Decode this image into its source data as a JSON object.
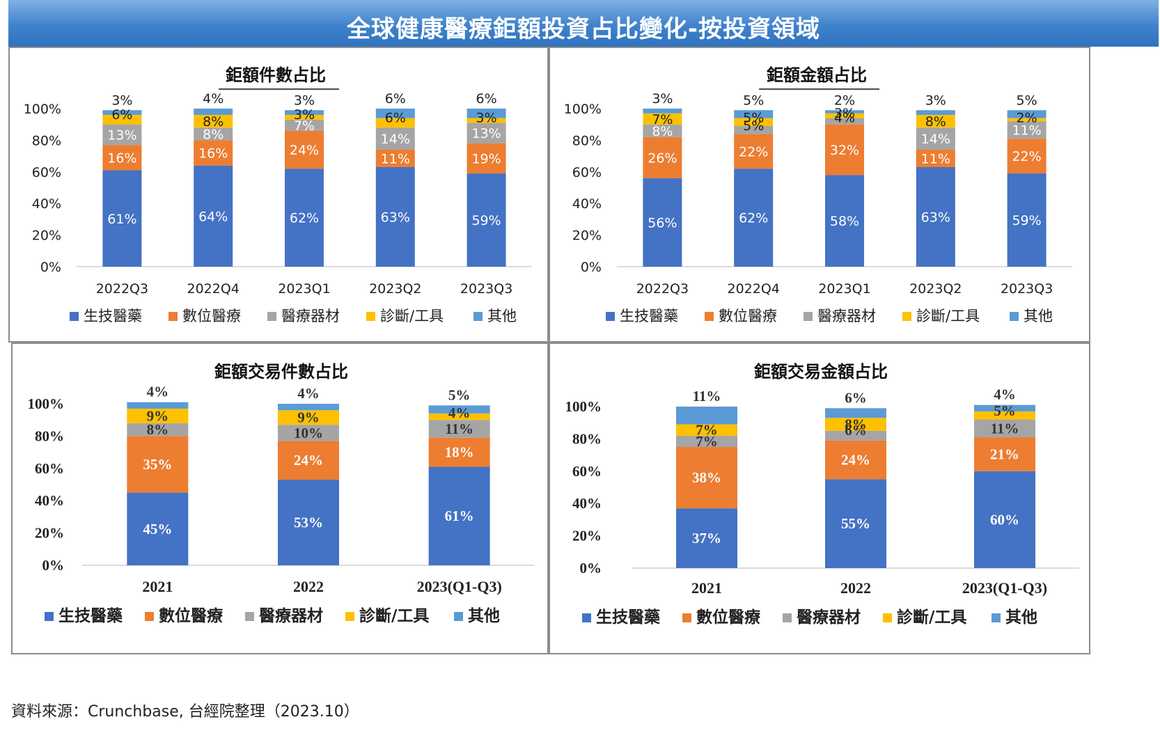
{
  "banner": {
    "title": "全球健康醫療鉅額投資占比變化-按投資領域"
  },
  "footer": {
    "source": "資料來源：Crunchbase, 台經院整理（2023.10）"
  },
  "colors": {
    "生技醫藥": "#4472c4",
    "數位醫療": "#ed7d31",
    "醫療器材": "#a5a5a5",
    "診斷/工具": "#ffc000",
    "其他": "#5b9bd5"
  },
  "chart_data": [
    {
      "type": "bar",
      "stacked": true,
      "title": "鉅額件數占比",
      "categories": [
        "2022Q3",
        "2022Q4",
        "2023Q1",
        "2023Q2",
        "2023Q3"
      ],
      "series": [
        {
          "name": "生技醫藥",
          "values": [
            61,
            64,
            62,
            63,
            59
          ]
        },
        {
          "name": "數位醫療",
          "values": [
            16,
            16,
            24,
            11,
            19
          ]
        },
        {
          "name": "醫療器材",
          "values": [
            13,
            8,
            7,
            14,
            13
          ]
        },
        {
          "name": "診斷/工具",
          "values": [
            6,
            8,
            3,
            6,
            3
          ]
        },
        {
          "name": "其他",
          "values": [
            3,
            4,
            3,
            6,
            6
          ]
        }
      ],
      "ylim": [
        0,
        100
      ],
      "yticks": [
        "0%",
        "20%",
        "40%",
        "60%",
        "80%",
        "100%"
      ],
      "legend": "bottom"
    },
    {
      "type": "bar",
      "stacked": true,
      "title": "鉅額金額占比",
      "categories": [
        "2022Q3",
        "2022Q4",
        "2023Q1",
        "2023Q2",
        "2023Q3"
      ],
      "series": [
        {
          "name": "生技醫藥",
          "values": [
            56,
            62,
            58,
            63,
            59
          ]
        },
        {
          "name": "數位醫療",
          "values": [
            26,
            22,
            32,
            11,
            22
          ]
        },
        {
          "name": "醫療器材",
          "values": [
            8,
            5,
            4,
            14,
            11
          ]
        },
        {
          "name": "診斷/工具",
          "values": [
            7,
            5,
            3,
            8,
            2
          ]
        },
        {
          "name": "其他",
          "values": [
            3,
            5,
            2,
            3,
            5
          ]
        }
      ],
      "ylim": [
        0,
        100
      ],
      "yticks": [
        "0%",
        "20%",
        "40%",
        "60%",
        "80%",
        "100%"
      ],
      "legend": "bottom"
    },
    {
      "type": "bar",
      "stacked": true,
      "title": "鉅額交易件數占比",
      "categories": [
        "2021",
        "2022",
        "2023(Q1-Q3)"
      ],
      "series": [
        {
          "name": "生技醫藥",
          "values": [
            45,
            53,
            61
          ]
        },
        {
          "name": "數位醫療",
          "values": [
            35,
            24,
            18
          ]
        },
        {
          "name": "醫療器材",
          "values": [
            8,
            10,
            11
          ]
        },
        {
          "name": "診斷/工具",
          "values": [
            9,
            9,
            4
          ]
        },
        {
          "name": "其他",
          "values": [
            4,
            4,
            5
          ]
        }
      ],
      "ylim": [
        0,
        100
      ],
      "yticks": [
        "0%",
        "20%",
        "40%",
        "60%",
        "80%",
        "100%"
      ],
      "legend": "bottom"
    },
    {
      "type": "bar",
      "stacked": true,
      "title": "鉅額交易金額占比",
      "categories": [
        "2021",
        "2022",
        "2023(Q1-Q3)"
      ],
      "series": [
        {
          "name": "生技醫藥",
          "values": [
            37,
            55,
            60
          ]
        },
        {
          "name": "數位醫療",
          "values": [
            38,
            24,
            21
          ]
        },
        {
          "name": "醫療器材",
          "values": [
            7,
            6,
            11
          ]
        },
        {
          "name": "診斷/工具",
          "values": [
            7,
            8,
            5
          ]
        },
        {
          "name": "其他",
          "values": [
            11,
            6,
            4
          ]
        }
      ],
      "ylim": [
        0,
        100
      ],
      "yticks": [
        "0%",
        "20%",
        "40%",
        "60%",
        "80%",
        "100%"
      ],
      "legend": "bottom"
    }
  ]
}
